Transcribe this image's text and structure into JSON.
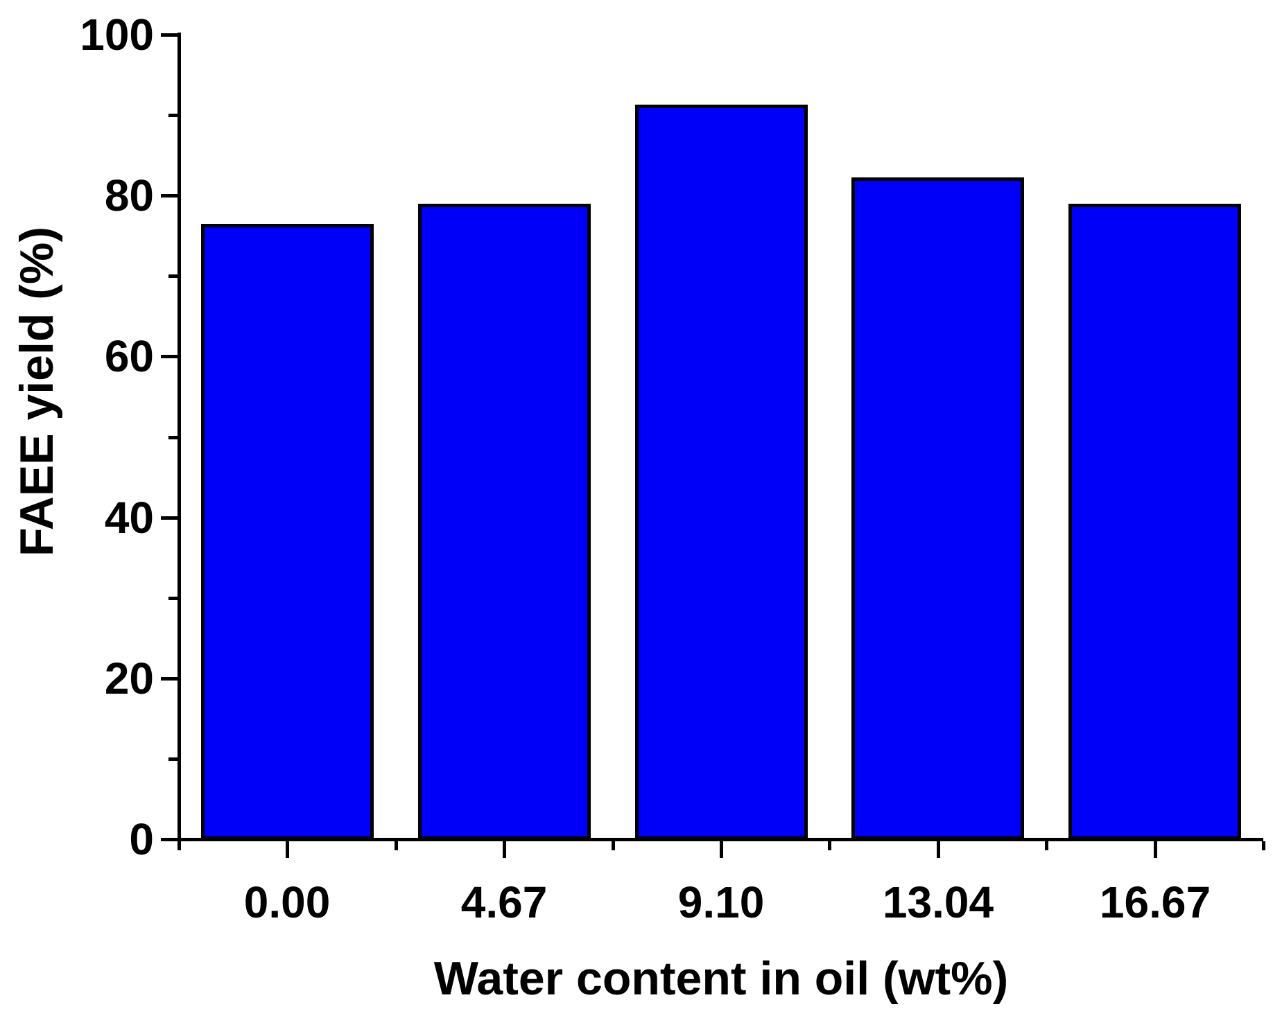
{
  "figure": {
    "background_color": "#ffffff",
    "axis_color": "#000000",
    "text_color": "#000000"
  },
  "chart_data": {
    "type": "bar",
    "categories": [
      "0.00",
      "4.67",
      "9.10",
      "13.04",
      "16.67"
    ],
    "values": [
      76.6,
      79.1,
      91.4,
      82.3,
      79.1
    ],
    "title": "",
    "xlabel": "Water content in oil (wt%)",
    "ylabel": "FAEE yield (%)",
    "ylim": [
      0,
      100
    ],
    "y_major_ticks": [
      0,
      20,
      40,
      60,
      80,
      100
    ],
    "y_minor_ticks": [
      10,
      30,
      50,
      70,
      90
    ],
    "grid": false,
    "legend": "none",
    "bar_fill_color": "#0000fa",
    "bar_border_color": "#000000",
    "bar_width_fraction": 0.796
  }
}
